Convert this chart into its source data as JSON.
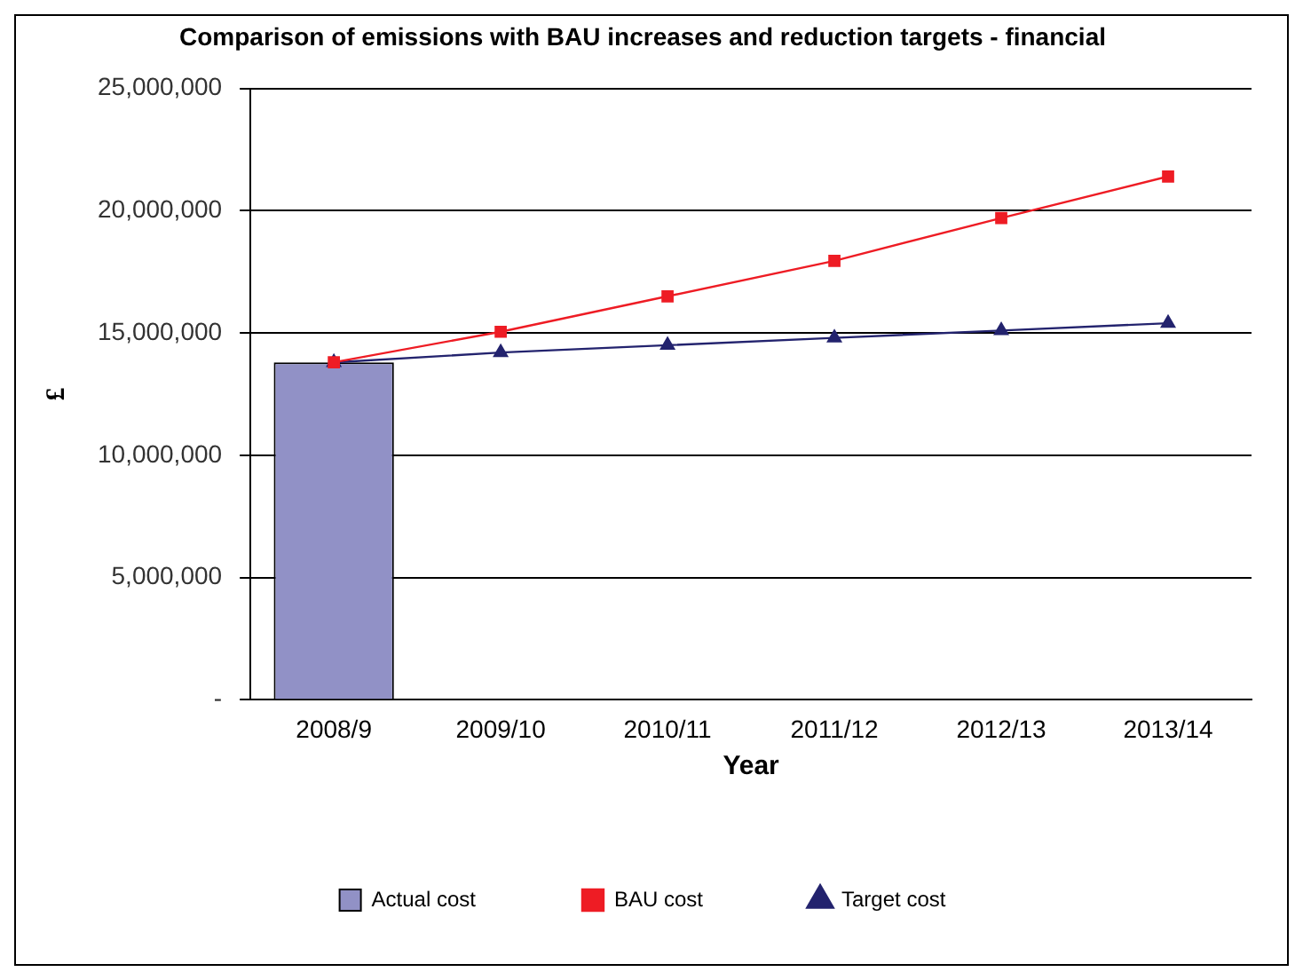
{
  "chart_data": {
    "type": "bar",
    "title": "Comparison of emissions with BAU increases and reduction targets - financial",
    "xlabel": "Year",
    "ylabel": "£",
    "categories": [
      "2008/9",
      "2009/10",
      "2010/11",
      "2011/12",
      "2012/13",
      "2013/14"
    ],
    "series": [
      {
        "name": "Actual cost",
        "color": "#9191c6",
        "values": [
          13800000,
          null,
          null,
          null,
          null,
          null
        ]
      },
      {
        "name": "BAU cost",
        "type": "line",
        "color": "#ee1c24",
        "marker": "square",
        "values": [
          13800000,
          15050000,
          16500000,
          17950000,
          19700000,
          21400000
        ]
      },
      {
        "name": "Target cost",
        "type": "line",
        "color": "#23236e",
        "marker": "triangle",
        "values": [
          13800000,
          14200000,
          14500000,
          14800000,
          15100000,
          15400000
        ]
      }
    ],
    "ylim": [
      0,
      25000000
    ],
    "yticks": [
      {
        "value": 0,
        "label": "-"
      },
      {
        "value": 5000000,
        "label": "5,000,000"
      },
      {
        "value": 10000000,
        "label": "10,000,000"
      },
      {
        "value": 15000000,
        "label": "15,000,000"
      },
      {
        "value": 20000000,
        "label": "20,000,000"
      },
      {
        "value": 25000000,
        "label": "25,000,000"
      }
    ],
    "grid": "y",
    "legend": "bottom"
  }
}
